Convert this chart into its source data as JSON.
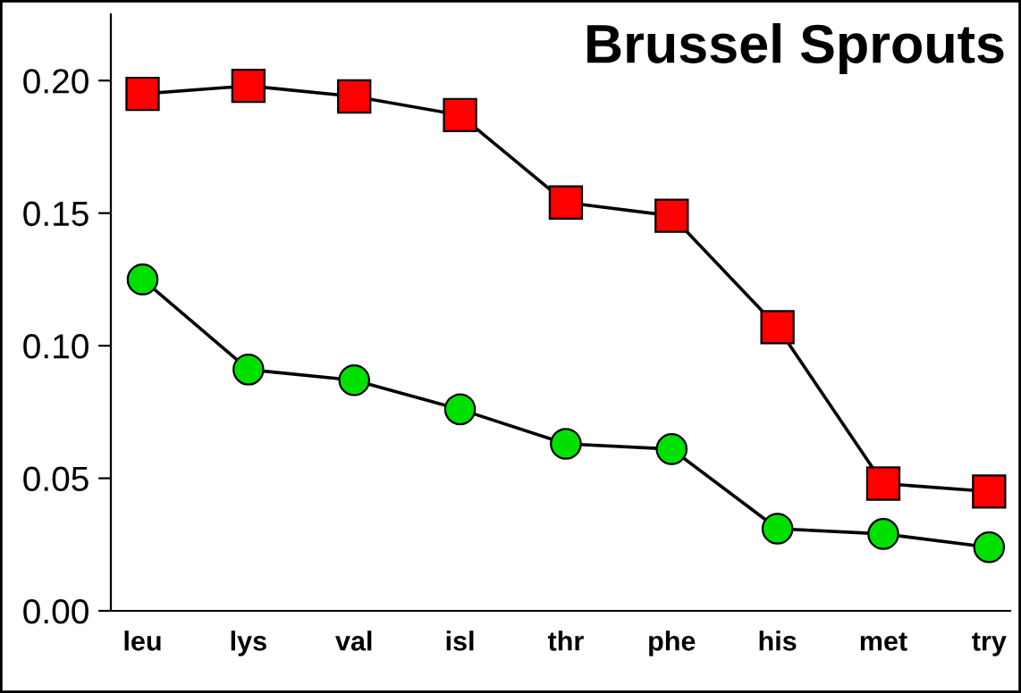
{
  "chart_data": {
    "type": "line",
    "title": "Brussel Sprouts",
    "categories": [
      "leu",
      "lys",
      "val",
      "isl",
      "thr",
      "phe",
      "his",
      "met",
      "try"
    ],
    "series": [
      {
        "color": "#ff0000",
        "marker": "square",
        "values": [
          0.195,
          0.198,
          0.194,
          0.187,
          0.154,
          0.149,
          0.107,
          0.048,
          0.045
        ]
      },
      {
        "color": "#00e000",
        "marker": "circle",
        "values": [
          0.125,
          0.091,
          0.087,
          0.076,
          0.063,
          0.061,
          0.031,
          0.029,
          0.024
        ]
      }
    ],
    "ylim": [
      0,
      0.225
    ],
    "yticks": [
      {
        "value": 0,
        "label": "0.00"
      },
      {
        "value": 0.05,
        "label": "0.05"
      },
      {
        "value": 0.1,
        "label": "0.10"
      },
      {
        "value": 0.15,
        "label": "0.15"
      },
      {
        "value": 0.2,
        "label": "0.20"
      }
    ],
    "grid": false,
    "legend": false,
    "line_style": "solid"
  }
}
